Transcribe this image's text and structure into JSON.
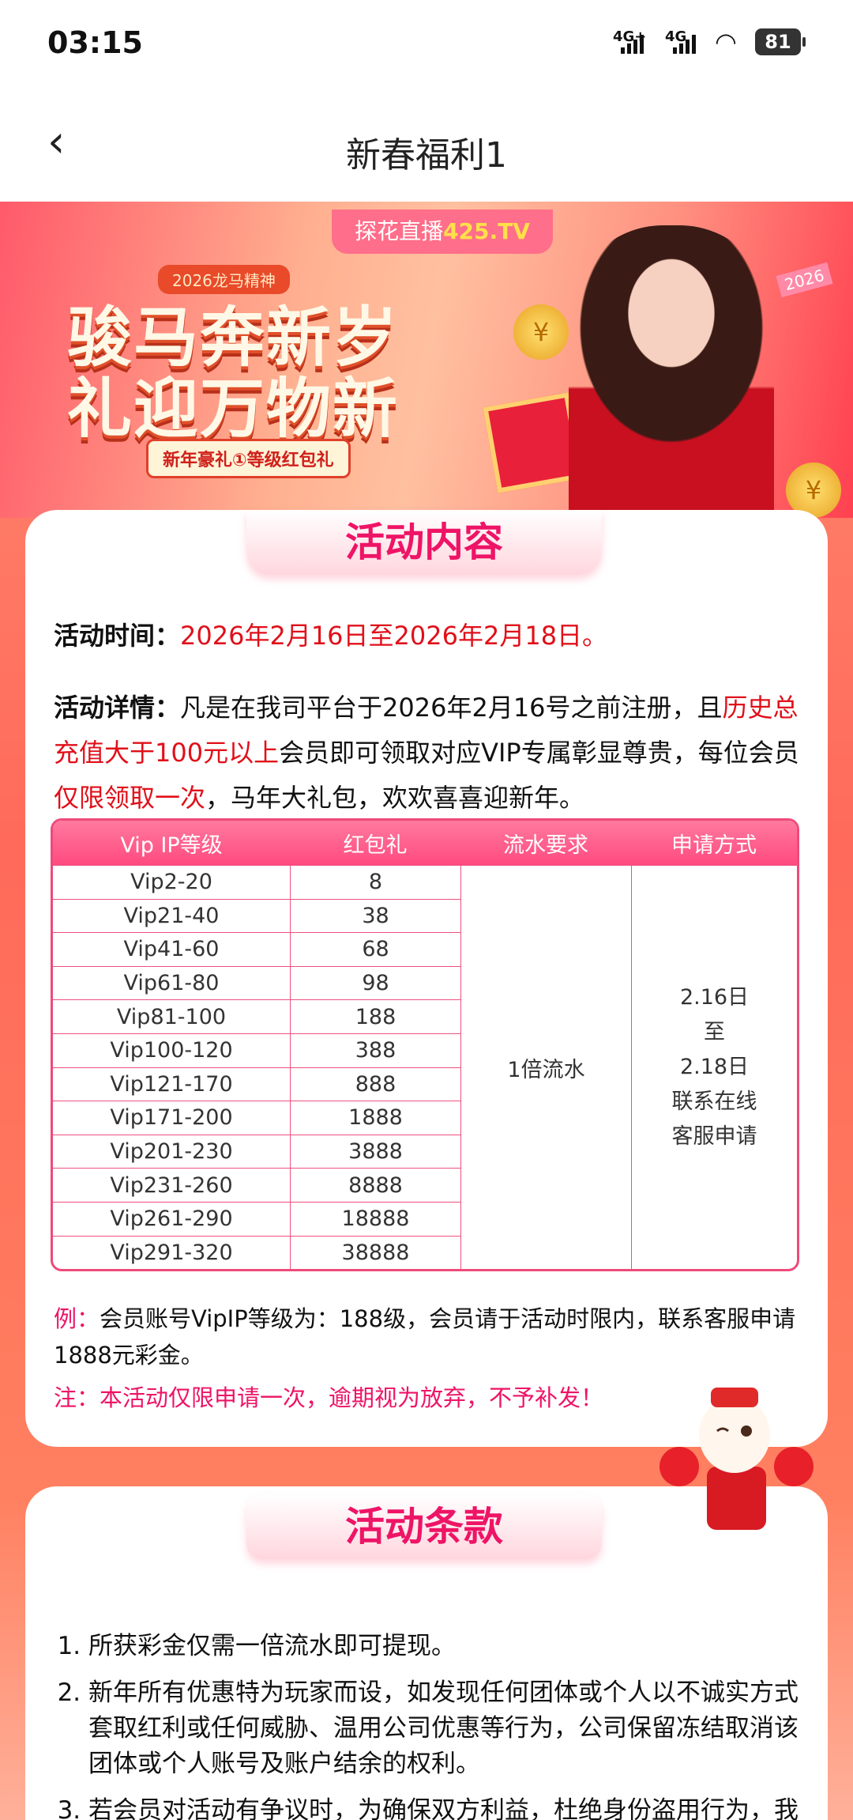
{
  "status_bar": {
    "time": "03:15",
    "network1": "4G+",
    "network2": "4G",
    "battery": "81"
  },
  "header": {
    "title": "新春福利1"
  },
  "banner": {
    "brand": "探花直播",
    "brand_highlight": "425.TV",
    "tag": "2026龙马精神",
    "line1": "骏马奔新岁",
    "line2": "礼迎万物新",
    "ribbon": "新年豪礼①等级红包礼",
    "badge": "2026"
  },
  "content": {
    "heading": "活动内容",
    "time_label": "活动时间：",
    "time_value": "2026年2月16日至2026年2月18日。",
    "detail_label": "活动详情：",
    "detail_1": "凡是在我司平台于2026年2月16号之前注册，且",
    "detail_red_1": "历史总充值大于100元以上",
    "detail_2": "会员即可领取对应VIP专属彰显尊贵，每位会员",
    "detail_red_2": "仅限领取一次",
    "detail_3": "，马年大礼包，欢欢喜喜迎新年。",
    "table": {
      "headers": [
        "Vip IP等级",
        "红包礼",
        "流水要求",
        "申请方式"
      ],
      "rows": [
        [
          "Vip2-20",
          "8"
        ],
        [
          "Vip21-40",
          "38"
        ],
        [
          "Vip41-60",
          "68"
        ],
        [
          "Vip61-80",
          "98"
        ],
        [
          "Vip81-100",
          "188"
        ],
        [
          "Vip100-120",
          "388"
        ],
        [
          "Vip121-170",
          "888"
        ],
        [
          "Vip171-200",
          "1888"
        ],
        [
          "Vip201-230",
          "3888"
        ],
        [
          "Vip231-260",
          "8888"
        ],
        [
          "Vip261-290",
          "18888"
        ],
        [
          "Vip291-320",
          "38888"
        ]
      ],
      "turnover": "1倍流水",
      "apply_lines": [
        "2.16日",
        "至",
        "2.18日",
        "联系在线",
        "客服申请"
      ]
    },
    "example_label": "例：",
    "example_text": "会员账号VipIP等级为：188级，会员请于活动时限内，联系客服申请1888元彩金。",
    "note": "注：本活动仅限申请一次，逾期视为放弃，不予补发！"
  },
  "terms": {
    "heading": "活动条款",
    "items": [
      "所获彩金仅需一倍流水即可提现。",
      "新年所有优惠特为玩家而设，如发现任何团体或个人以不诚实方式套取红利或任何威胁、温用公司优惠等行为，公司保留冻结取消该团体或个人账号及账户结余的权利。",
      "若会员对活动有争议时，为确保双方利益，杜绝身份盗用行为，我司有权要求会员向我们提供充足的有效证明，用以确认是否享"
    ]
  },
  "colors": {
    "accent": "#ee1466",
    "red": "#e0101a",
    "table_header": "#ff5a88"
  }
}
